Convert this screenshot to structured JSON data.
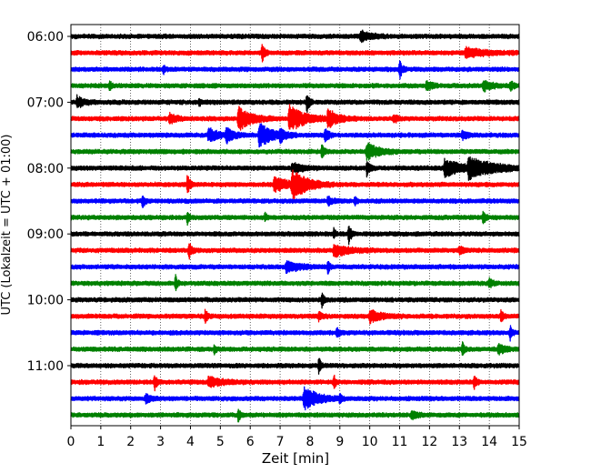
{
  "chart_data": {
    "type": "line",
    "subtype": "helicorder",
    "title": "",
    "xlabel": "Zeit  [min]",
    "ylabel": "UTC (Lokalzeit = UTC + 01:00)",
    "xlim": [
      0,
      15
    ],
    "x_ticks": [
      "0",
      "1",
      "2",
      "3",
      "4",
      "5",
      "6",
      "7",
      "8",
      "9",
      "10",
      "11",
      "12",
      "13",
      "14",
      "15"
    ],
    "y_tick_labels": [
      "06:00",
      "07:00",
      "08:00",
      "09:00",
      "10:00",
      "11:00"
    ],
    "trace_colors": [
      "#000000",
      "#ff0000",
      "#0000ff",
      "#008000"
    ],
    "vertical_grid": "dotted",
    "traces": [
      {
        "start": "06:00",
        "color": "#000000",
        "events": [
          {
            "t": 9.7,
            "amp": 0.3,
            "dur": 0.6
          }
        ]
      },
      {
        "start": "06:15",
        "color": "#ff0000",
        "events": [
          {
            "t": 6.4,
            "amp": 0.55,
            "dur": 0.15
          },
          {
            "t": 13.2,
            "amp": 0.25,
            "dur": 1.2
          }
        ]
      },
      {
        "start": "06:30",
        "color": "#0000ff",
        "events": [
          {
            "t": 3.1,
            "amp": 0.25,
            "dur": 0.1
          },
          {
            "t": 11.0,
            "amp": 0.55,
            "dur": 0.15
          }
        ]
      },
      {
        "start": "06:45",
        "color": "#008000",
        "events": [
          {
            "t": 1.3,
            "amp": 0.3,
            "dur": 0.1
          },
          {
            "t": 11.9,
            "amp": 0.35,
            "dur": 0.3
          },
          {
            "t": 13.8,
            "amp": 0.3,
            "dur": 0.5
          },
          {
            "t": 14.7,
            "amp": 0.3,
            "dur": 0.2
          }
        ]
      },
      {
        "start": "07:00",
        "color": "#000000",
        "events": [
          {
            "t": 0.2,
            "amp": 0.35,
            "dur": 0.4
          },
          {
            "t": 4.3,
            "amp": 0.25,
            "dur": 0.1
          },
          {
            "t": 7.9,
            "amp": 0.6,
            "dur": 0.15
          }
        ]
      },
      {
        "start": "07:15",
        "color": "#ff0000",
        "events": [
          {
            "t": 3.3,
            "amp": 0.3,
            "dur": 0.4
          },
          {
            "t": 5.6,
            "amp": 0.7,
            "dur": 0.8
          },
          {
            "t": 7.3,
            "amp": 0.8,
            "dur": 0.9
          },
          {
            "t": 8.6,
            "amp": 0.55,
            "dur": 0.6
          },
          {
            "t": 10.8,
            "amp": 0.3,
            "dur": 0.2
          }
        ]
      },
      {
        "start": "07:30",
        "color": "#0000ff",
        "events": [
          {
            "t": 4.6,
            "amp": 0.4,
            "dur": 0.6
          },
          {
            "t": 5.2,
            "amp": 0.4,
            "dur": 0.5
          },
          {
            "t": 6.3,
            "amp": 0.7,
            "dur": 0.8
          },
          {
            "t": 7.0,
            "amp": 0.3,
            "dur": 0.3
          },
          {
            "t": 8.5,
            "amp": 0.5,
            "dur": 0.2
          },
          {
            "t": 13.1,
            "amp": 0.25,
            "dur": 0.3
          }
        ]
      },
      {
        "start": "07:45",
        "color": "#008000",
        "events": [
          {
            "t": 8.4,
            "amp": 0.4,
            "dur": 0.15
          },
          {
            "t": 9.9,
            "amp": 0.5,
            "dur": 0.7
          }
        ]
      },
      {
        "start": "08:00",
        "color": "#000000",
        "events": [
          {
            "t": 7.4,
            "amp": 0.3,
            "dur": 0.6
          },
          {
            "t": 9.9,
            "amp": 0.45,
            "dur": 0.2
          },
          {
            "t": 12.5,
            "amp": 0.5,
            "dur": 1.0
          },
          {
            "t": 13.3,
            "amp": 0.55,
            "dur": 1.6
          }
        ]
      },
      {
        "start": "08:15",
        "color": "#ff0000",
        "events": [
          {
            "t": 3.9,
            "amp": 0.6,
            "dur": 0.15
          },
          {
            "t": 6.8,
            "amp": 0.4,
            "dur": 1.0
          },
          {
            "t": 7.4,
            "amp": 0.8,
            "dur": 0.9
          }
        ]
      },
      {
        "start": "08:30",
        "color": "#0000ff",
        "events": [
          {
            "t": 2.4,
            "amp": 0.45,
            "dur": 0.12
          },
          {
            "t": 8.6,
            "amp": 0.25,
            "dur": 0.3
          },
          {
            "t": 9.5,
            "amp": 0.25,
            "dur": 0.1
          }
        ]
      },
      {
        "start": "08:45",
        "color": "#008000",
        "events": [
          {
            "t": 3.9,
            "amp": 0.4,
            "dur": 0.1
          },
          {
            "t": 6.5,
            "amp": 0.25,
            "dur": 0.1
          },
          {
            "t": 13.8,
            "amp": 0.45,
            "dur": 0.12
          }
        ]
      },
      {
        "start": "09:00",
        "color": "#000000",
        "events": [
          {
            "t": 8.8,
            "amp": 0.3,
            "dur": 0.1
          },
          {
            "t": 9.3,
            "amp": 0.55,
            "dur": 0.15
          }
        ]
      },
      {
        "start": "09:15",
        "color": "#ff0000",
        "events": [
          {
            "t": 3.95,
            "amp": 0.55,
            "dur": 0.15
          },
          {
            "t": 8.8,
            "amp": 0.35,
            "dur": 0.9
          },
          {
            "t": 13.0,
            "amp": 0.25,
            "dur": 0.2
          }
        ]
      },
      {
        "start": "09:30",
        "color": "#0000ff",
        "events": [
          {
            "t": 7.2,
            "amp": 0.3,
            "dur": 0.8
          },
          {
            "t": 8.6,
            "amp": 0.4,
            "dur": 0.12
          }
        ]
      },
      {
        "start": "09:45",
        "color": "#008000",
        "events": [
          {
            "t": 3.5,
            "amp": 0.45,
            "dur": 0.12
          },
          {
            "t": 14.0,
            "amp": 0.25,
            "dur": 0.2
          }
        ]
      },
      {
        "start": "10:00",
        "color": "#000000",
        "events": [
          {
            "t": 8.4,
            "amp": 0.45,
            "dur": 0.12
          }
        ]
      },
      {
        "start": "10:15",
        "color": "#ff0000",
        "events": [
          {
            "t": 4.5,
            "amp": 0.4,
            "dur": 0.12
          },
          {
            "t": 8.3,
            "amp": 0.25,
            "dur": 0.2
          },
          {
            "t": 10.0,
            "amp": 0.35,
            "dur": 0.7
          },
          {
            "t": 14.4,
            "amp": 0.4,
            "dur": 0.12
          }
        ]
      },
      {
        "start": "10:30",
        "color": "#0000ff",
        "events": [
          {
            "t": 8.9,
            "amp": 0.3,
            "dur": 0.2
          },
          {
            "t": 14.7,
            "amp": 0.4,
            "dur": 0.12
          }
        ]
      },
      {
        "start": "10:45",
        "color": "#008000",
        "events": [
          {
            "t": 4.8,
            "amp": 0.3,
            "dur": 0.1
          },
          {
            "t": 13.1,
            "amp": 0.45,
            "dur": 0.12
          },
          {
            "t": 14.3,
            "amp": 0.3,
            "dur": 0.4
          }
        ]
      },
      {
        "start": "11:00",
        "color": "#000000",
        "events": [
          {
            "t": 8.3,
            "amp": 0.45,
            "dur": 0.12
          }
        ]
      },
      {
        "start": "11:15",
        "color": "#ff0000",
        "events": [
          {
            "t": 2.8,
            "amp": 0.45,
            "dur": 0.15
          },
          {
            "t": 4.6,
            "amp": 0.3,
            "dur": 0.8
          },
          {
            "t": 8.8,
            "amp": 0.4,
            "dur": 0.12
          },
          {
            "t": 13.5,
            "amp": 0.4,
            "dur": 0.12
          }
        ]
      },
      {
        "start": "11:30",
        "color": "#0000ff",
        "events": [
          {
            "t": 2.5,
            "amp": 0.25,
            "dur": 0.3
          },
          {
            "t": 7.8,
            "amp": 0.7,
            "dur": 0.8
          },
          {
            "t": 9.0,
            "amp": 0.35,
            "dur": 0.12
          }
        ]
      },
      {
        "start": "11:45",
        "color": "#008000",
        "events": [
          {
            "t": 5.6,
            "amp": 0.4,
            "dur": 0.12
          },
          {
            "t": 11.4,
            "amp": 0.25,
            "dur": 0.3
          }
        ]
      }
    ]
  }
}
